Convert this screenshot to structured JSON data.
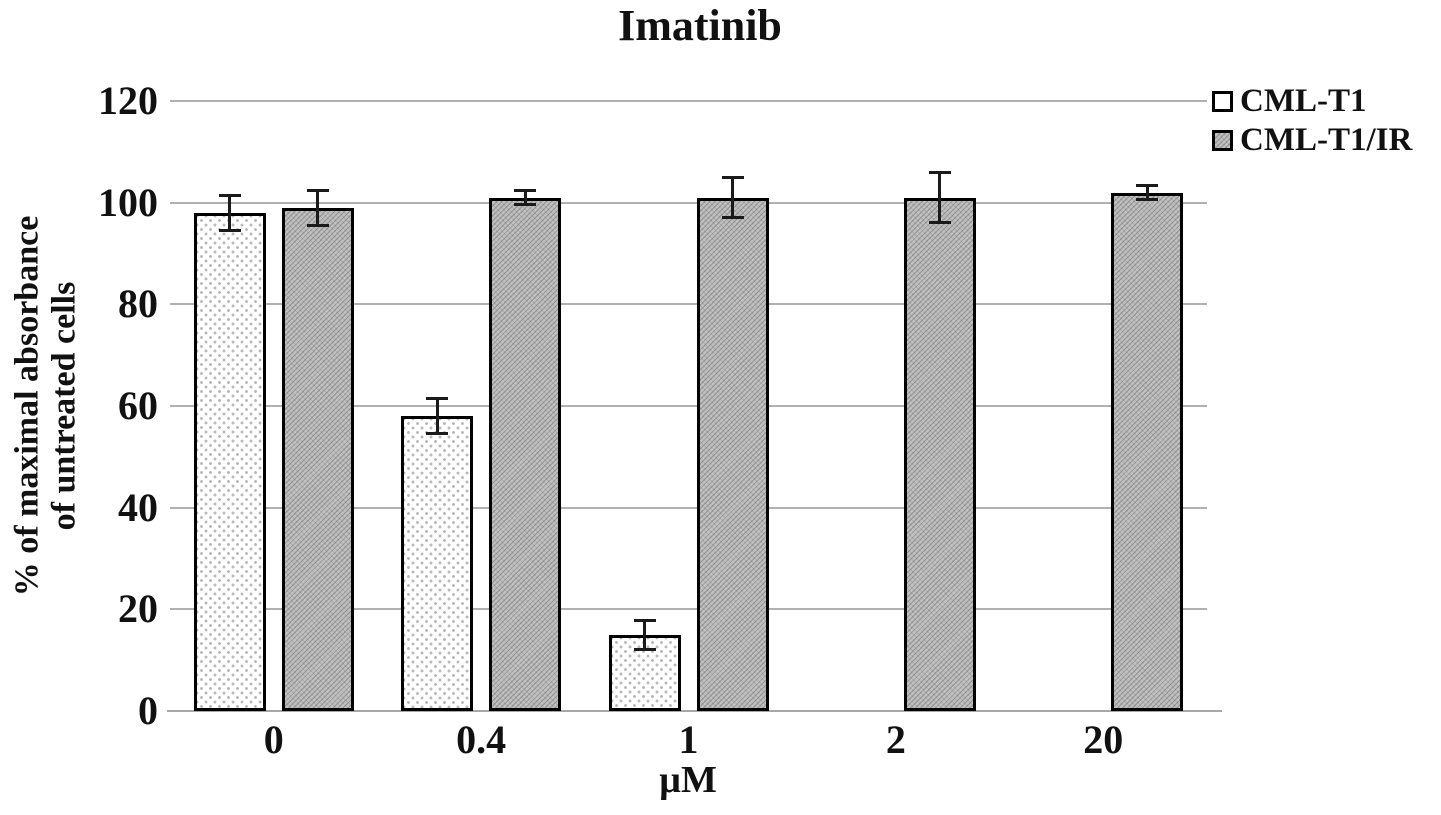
{
  "title": "Imatinib",
  "axes": {
    "y_label": "% of maximal absorbance\nof untreated cells",
    "x_label": "µM"
  },
  "legend": {
    "items": [
      {
        "label": "CML-T1",
        "swatch": "dotted-white"
      },
      {
        "label": "CML-T1/IR",
        "swatch": "hatched-gray"
      }
    ],
    "position": "top-right"
  },
  "colors": {
    "grid": "#b0b0b0",
    "axis_line": "#a8a8a8",
    "bar_border": "#000000",
    "bar_fill_cml_t1": "#ffffff",
    "bar_fill_cml_t1_ir": "#c0c0c0",
    "text": "#111111"
  },
  "chart_data": {
    "type": "bar",
    "title": "Imatinib",
    "xlabel": "µM",
    "ylabel": "% of maximal absorbance of untreated cells",
    "categories": [
      "0",
      "0.4",
      "1",
      "2",
      "20"
    ],
    "series": [
      {
        "name": "CML-T1",
        "pattern": "dots",
        "values": [
          98,
          58,
          15,
          0,
          0
        ],
        "errors": [
          3.5,
          3.5,
          3,
          0,
          0
        ]
      },
      {
        "name": "CML-T1/IR",
        "pattern": "hatch",
        "values": [
          99,
          101,
          101,
          101,
          102
        ],
        "errors": [
          3.5,
          1.5,
          4,
          5,
          1.5
        ]
      }
    ],
    "ylim": [
      0,
      120
    ],
    "yticks": [
      0,
      20,
      40,
      60,
      80,
      100,
      120
    ],
    "grid": true,
    "legend_position": "top-right"
  }
}
